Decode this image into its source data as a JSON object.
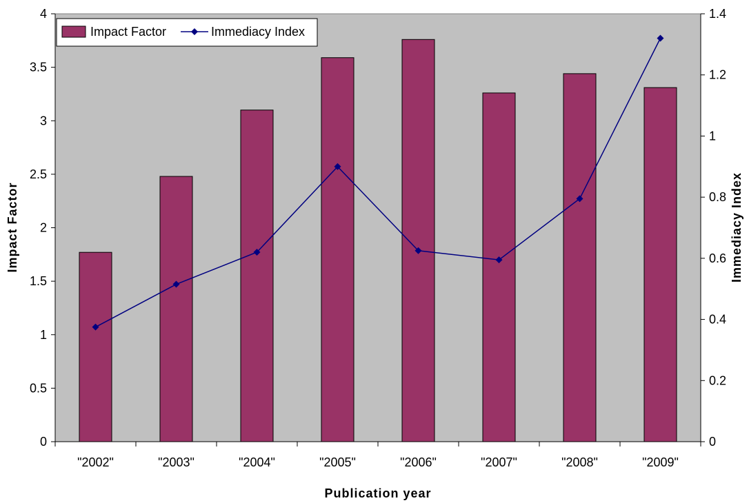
{
  "chart_data": {
    "type": "bar",
    "categories": [
      "\"2002\"",
      "\"2003\"",
      "\"2004\"",
      "\"2005\"",
      "\"2006\"",
      "\"2007\"",
      "\"2008\"",
      "\"2009\""
    ],
    "series": [
      {
        "name": "Impact Factor",
        "type": "bar",
        "axis": "left",
        "color": "#993366",
        "values": [
          1.77,
          2.48,
          3.1,
          3.59,
          3.76,
          3.26,
          3.44,
          3.31
        ]
      },
      {
        "name": "Immediacy Index",
        "type": "line",
        "axis": "right",
        "color": "#000080",
        "marker": "diamond",
        "values": [
          0.375,
          0.515,
          0.62,
          0.9,
          0.625,
          0.595,
          0.795,
          1.32
        ]
      }
    ],
    "xlabel": "Publication year",
    "ylabel": "Impact Factor",
    "y2label": "Immediacy Index",
    "ylim": [
      0,
      4
    ],
    "y2lim": [
      0,
      1.4
    ],
    "yticks": [
      "0",
      "0.5",
      "1",
      "1.5",
      "2",
      "2.5",
      "3",
      "3.5",
      "4"
    ],
    "y2ticks": [
      "0",
      "0.2",
      "0.4",
      "0.6",
      "0.8",
      "1",
      "1.2",
      "1.4"
    ],
    "legend_position": "top-left",
    "plot_background": "#c0c0c0",
    "grid": false
  }
}
